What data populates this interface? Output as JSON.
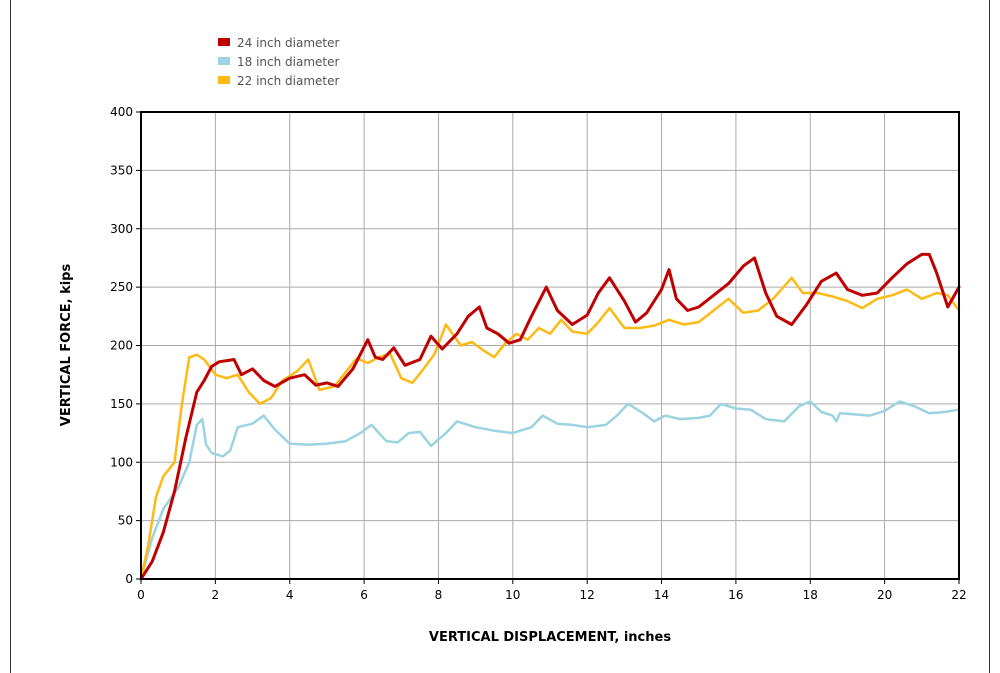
{
  "chart_data": {
    "type": "line",
    "xlabel": "VERTICAL DISPLACEMENT, inches",
    "ylabel": "VERTICAL FORCE, kips",
    "xlim": [
      0,
      22
    ],
    "ylim": [
      0,
      400
    ],
    "x_ticks": [
      0,
      2,
      4,
      6,
      8,
      10,
      12,
      14,
      16,
      18,
      20,
      22
    ],
    "y_ticks": [
      0,
      50,
      100,
      150,
      200,
      250,
      300,
      350,
      400
    ],
    "grid": true,
    "legend_position": "top-left",
    "series": [
      {
        "name": "24 inch diameter",
        "color": "#C00000",
        "x": [
          0,
          0.3,
          0.6,
          0.9,
          1.2,
          1.5,
          1.7,
          1.9,
          2.1,
          2.5,
          2.7,
          3.0,
          3.3,
          3.6,
          4.0,
          4.4,
          4.7,
          5.0,
          5.3,
          5.7,
          6.1,
          6.3,
          6.5,
          6.8,
          7.1,
          7.5,
          7.8,
          8.1,
          8.5,
          8.8,
          9.1,
          9.3,
          9.6,
          9.9,
          10.2,
          10.5,
          10.9,
          11.2,
          11.6,
          12.0,
          12.3,
          12.6,
          13.0,
          13.3,
          13.6,
          14.0,
          14.2,
          14.4,
          14.7,
          15.0,
          15.4,
          15.8,
          16.2,
          16.5,
          16.8,
          17.1,
          17.5,
          17.9,
          18.3,
          18.7,
          19.0,
          19.4,
          19.8,
          20.2,
          20.6,
          21.0,
          21.2,
          21.4,
          21.7,
          22.0
        ],
        "values": [
          0,
          15,
          40,
          75,
          120,
          160,
          170,
          182,
          186,
          188,
          175,
          180,
          170,
          165,
          172,
          175,
          166,
          168,
          165,
          180,
          205,
          190,
          188,
          198,
          183,
          188,
          208,
          197,
          210,
          225,
          233,
          215,
          210,
          202,
          205,
          225,
          250,
          230,
          218,
          226,
          245,
          258,
          238,
          220,
          228,
          248,
          265,
          240,
          230,
          233,
          243,
          253,
          268,
          275,
          245,
          225,
          218,
          235,
          255,
          262,
          248,
          243,
          245,
          258,
          270,
          278,
          278,
          262,
          233,
          250
        ]
      },
      {
        "name": "18 inch diameter",
        "color": "#9BD3E0",
        "x": [
          0,
          0.3,
          0.6,
          1.0,
          1.3,
          1.5,
          1.65,
          1.75,
          1.9,
          2.2,
          2.4,
          2.6,
          3.0,
          3.3,
          3.6,
          4.0,
          4.5,
          5.0,
          5.5,
          5.9,
          6.2,
          6.6,
          6.9,
          7.2,
          7.5,
          7.8,
          8.2,
          8.5,
          9.0,
          9.5,
          10.0,
          10.5,
          10.8,
          11.2,
          11.6,
          12.0,
          12.5,
          12.8,
          13.1,
          13.5,
          13.8,
          14.1,
          14.5,
          15.0,
          15.3,
          15.6,
          16.0,
          16.4,
          16.8,
          17.3,
          17.7,
          18.0,
          18.3,
          18.6,
          18.7,
          18.8,
          19.2,
          19.6,
          20.0,
          20.4,
          20.8,
          21.2,
          21.6,
          22.0
        ],
        "values": [
          0,
          35,
          60,
          78,
          100,
          132,
          137,
          115,
          108,
          105,
          110,
          130,
          133,
          140,
          128,
          116,
          115,
          116,
          118,
          125,
          132,
          118,
          117,
          125,
          126,
          114,
          125,
          135,
          130,
          127,
          125,
          130,
          140,
          133,
          132,
          130,
          132,
          140,
          150,
          142,
          135,
          140,
          137,
          138,
          140,
          150,
          146,
          145,
          137,
          135,
          148,
          152,
          143,
          140,
          135,
          142,
          141,
          140,
          144,
          152,
          148,
          142,
          143,
          145
        ]
      },
      {
        "name": "22 inch diameter",
        "color": "#FDBA12",
        "x": [
          0,
          0.2,
          0.4,
          0.6,
          0.9,
          1.1,
          1.3,
          1.5,
          1.7,
          2.0,
          2.3,
          2.6,
          2.9,
          3.2,
          3.5,
          3.8,
          4.2,
          4.5,
          4.8,
          5.2,
          5.5,
          5.8,
          6.1,
          6.4,
          6.7,
          7.0,
          7.3,
          7.6,
          7.9,
          8.2,
          8.6,
          8.9,
          9.2,
          9.5,
          9.8,
          10.1,
          10.4,
          10.7,
          11.0,
          11.3,
          11.6,
          12.0,
          12.3,
          12.6,
          13.0,
          13.4,
          13.8,
          14.2,
          14.6,
          15.0,
          15.4,
          15.8,
          16.2,
          16.6,
          17.0,
          17.5,
          17.8,
          18.2,
          18.6,
          19.0,
          19.4,
          19.8,
          20.2,
          20.6,
          21.0,
          21.4,
          21.7,
          22.0
        ],
        "values": [
          0,
          30,
          70,
          88,
          100,
          150,
          190,
          192,
          188,
          175,
          172,
          175,
          160,
          150,
          155,
          170,
          178,
          188,
          162,
          165,
          177,
          189,
          185,
          190,
          193,
          172,
          168,
          180,
          193,
          218,
          200,
          203,
          196,
          190,
          202,
          210,
          205,
          215,
          210,
          222,
          212,
          210,
          220,
          232,
          215,
          215,
          217,
          222,
          218,
          220,
          230,
          240,
          228,
          230,
          240,
          258,
          245,
          245,
          242,
          238,
          232,
          240,
          243,
          248,
          240,
          245,
          243,
          230
        ]
      }
    ]
  }
}
